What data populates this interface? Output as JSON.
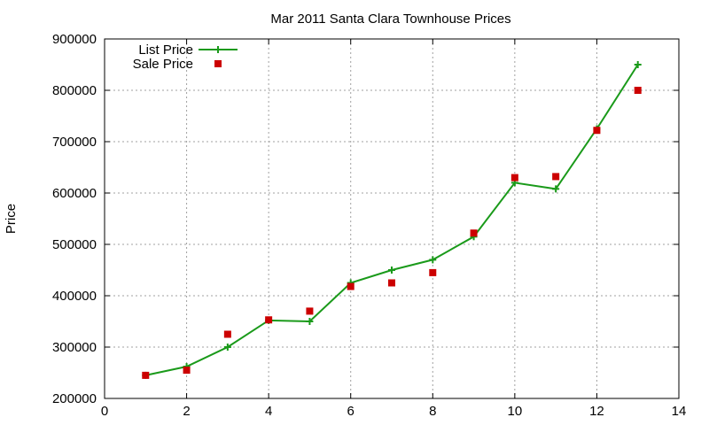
{
  "chart_data": {
    "type": "line",
    "title": "Mar 2011 Santa Clara Townhouse Prices",
    "xlabel": "",
    "ylabel": "Price",
    "xlim": [
      0,
      14
    ],
    "ylim": [
      200000,
      900000
    ],
    "xticks": [
      0,
      2,
      4,
      6,
      8,
      10,
      12,
      14
    ],
    "yticks": [
      200000,
      300000,
      400000,
      500000,
      600000,
      700000,
      800000,
      900000
    ],
    "grid": true,
    "legend_position": "top-left",
    "series": [
      {
        "name": "List Price",
        "style": "line-with-plus-markers",
        "color": "#1a9a1a",
        "x": [
          1,
          2,
          3,
          4,
          5,
          6,
          7,
          8,
          9,
          10,
          11,
          12,
          13
        ],
        "values": [
          245000,
          262000,
          300000,
          352000,
          350000,
          425000,
          450000,
          470000,
          515000,
          620000,
          608000,
          725000,
          850000
        ]
      },
      {
        "name": "Sale Price",
        "style": "square-markers",
        "color": "#cc0000",
        "x": [
          1,
          2,
          3,
          4,
          5,
          6,
          7,
          8,
          9,
          10,
          11,
          12,
          13
        ],
        "values": [
          245000,
          255000,
          325000,
          353000,
          370000,
          418000,
          425000,
          445000,
          522000,
          630000,
          632000,
          722000,
          800000
        ]
      }
    ]
  }
}
